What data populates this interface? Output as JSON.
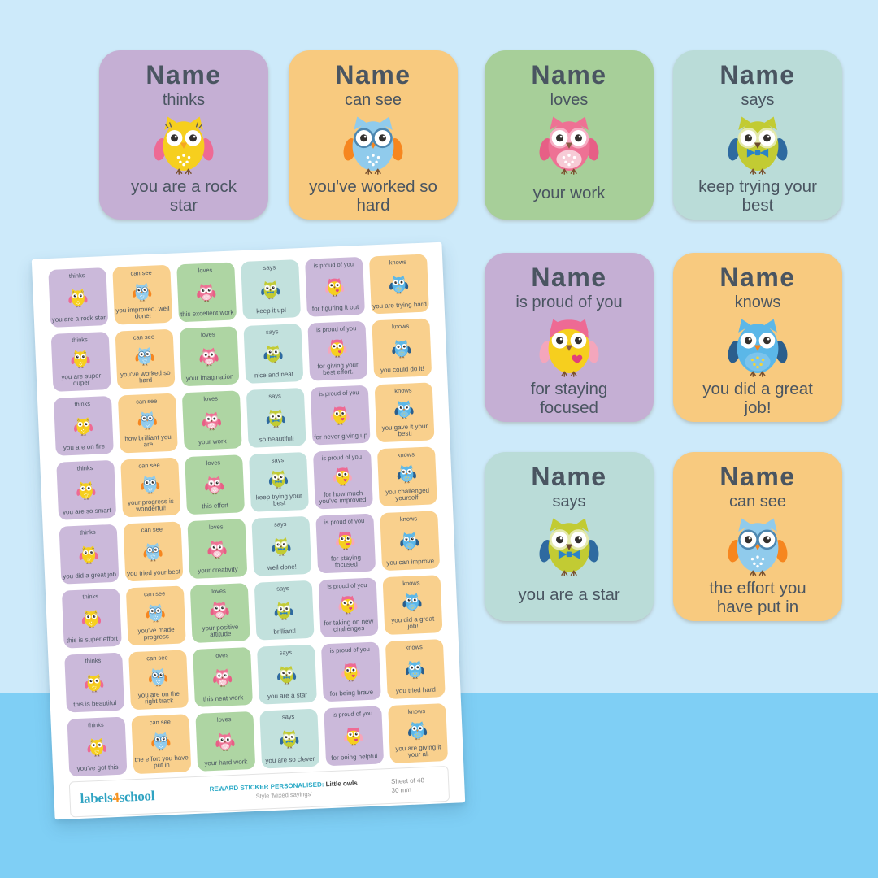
{
  "name_placeholder": "Name",
  "colors": {
    "background": "#cdeafa",
    "background_strip": "#7fcff5",
    "paper": "#ffffff",
    "text": "#4a5561",
    "logo_teal": "#2fa3c2",
    "logo_orange": "#f6921e",
    "footer_highlight": "#29a9c6"
  },
  "owl_variants": {
    "thinks": {
      "body": "#f6cf1e",
      "wing": "#ee6a94",
      "beak": "#f5a623",
      "pattern": "#ffffff",
      "accessory": "lashes",
      "accessory_color": "#5a5a5a"
    },
    "cansee": {
      "body": "#90cbec",
      "wing": "#f6861f",
      "beak": "#f6861f",
      "pattern": "#ffffff",
      "accessory": "glasses",
      "accessory_color": "#4e87b0"
    },
    "loves": {
      "body": "#ee7194",
      "wing": "#e75f86",
      "beak": "#8a5a44",
      "belly": "#f7cbd6",
      "pattern": "#ffffff",
      "eye_ring": "#f6afc4"
    },
    "says": {
      "body": "#c2cb33",
      "wing": "#2e6aa0",
      "beak": "#6b4a2f",
      "eye_ring": "#e4e9ad",
      "accessory": "bowtie",
      "accessory_color": "#2b83c6"
    },
    "proud": {
      "body": "#f6cf1e",
      "wing": "#f4a6bc",
      "beak": "#8a5a44",
      "crown": "#ee6a94",
      "accessory": "heart",
      "accessory_color": "#e23f78"
    },
    "knows": {
      "body": "#5bb7e8",
      "wing": "#2b5e8c",
      "beak": "#f6861f",
      "belly": "#7cc4ec",
      "pattern": "#f2d43c"
    }
  },
  "previews": [
    {
      "verb": "thinks",
      "message": "you are a rock star",
      "bg": "#c5afd4",
      "owl": "thinks"
    },
    {
      "verb": "can see",
      "message": "you've worked so hard",
      "bg": "#f8ca7f",
      "owl": "cansee"
    },
    {
      "verb": "loves",
      "message": "your work",
      "bg": "#a7cf99",
      "owl": "loves"
    },
    {
      "verb": "says",
      "message": "keep trying your best",
      "bg": "#badcd8",
      "owl": "says"
    },
    {
      "verb": "is proud of you",
      "message": "for staying focused",
      "bg": "#c5afd4",
      "owl": "proud"
    },
    {
      "verb": "knows",
      "message": "you did a great job!",
      "bg": "#f8ca7f",
      "owl": "knows"
    },
    {
      "verb": "says",
      "message": "you are a star",
      "bg": "#badcd8",
      "owl": "says"
    },
    {
      "verb": "can see",
      "message": "the effort you have put in",
      "bg": "#f8ca7f",
      "owl": "cansee"
    }
  ],
  "sheet": {
    "columns": [
      {
        "verb": "thinks",
        "bg": "#cbb9da",
        "owl": "thinks"
      },
      {
        "verb": "can see",
        "bg": "#f9d08d",
        "owl": "cansee"
      },
      {
        "verb": "loves",
        "bg": "#aed5a3",
        "owl": "loves"
      },
      {
        "verb": "says",
        "bg": "#c2e1dd",
        "owl": "says"
      },
      {
        "verb": "is proud of you",
        "bg": "#cbb9da",
        "owl": "proud"
      },
      {
        "verb": "knows",
        "bg": "#f9d08d",
        "owl": "knows"
      }
    ],
    "rows": [
      [
        "you are a rock star",
        "you improved. well done!",
        "this excellent work",
        "keep it up!",
        "for figuring it out",
        "you are trying hard"
      ],
      [
        "you are super duper",
        "you've worked so hard",
        "your imagination",
        "nice and neat",
        "for giving your best effort.",
        "you could do it!"
      ],
      [
        "you are on fire",
        "how brilliant you are",
        "your work",
        "so beautiful!",
        "for never giving up",
        "you gave it your best!"
      ],
      [
        "you are so smart",
        "your progress is wonderful!",
        "this effort",
        "keep trying your best",
        "for how much you've improved.",
        "you challenged yourself!"
      ],
      [
        "you did a great job",
        "you tried your best",
        "your creativity",
        "well done!",
        "for staying focused",
        "you can improve"
      ],
      [
        "this is super effort",
        "you've made progress",
        "your positive attitude",
        "brilliant!",
        "for taking on new challenges",
        "you did a great job!"
      ],
      [
        "this is beautiful",
        "you are on the right track",
        "this neat work",
        "you are a star",
        "for being brave",
        "you tried hard"
      ],
      [
        "you've got this",
        "the effort you have put in",
        "your hard work",
        "you are so clever",
        "for being helpful",
        "you are giving it your all"
      ]
    ]
  },
  "footer": {
    "logo_labels": "labels",
    "logo_4": "4",
    "logo_school": "school",
    "title_highlight": "REWARD STICKER PERSONALISED:",
    "title_product": "Little owls",
    "style_line": "Style 'Mixed sayings'",
    "sheet_count": "Sheet of 48",
    "size": "30 mm"
  }
}
